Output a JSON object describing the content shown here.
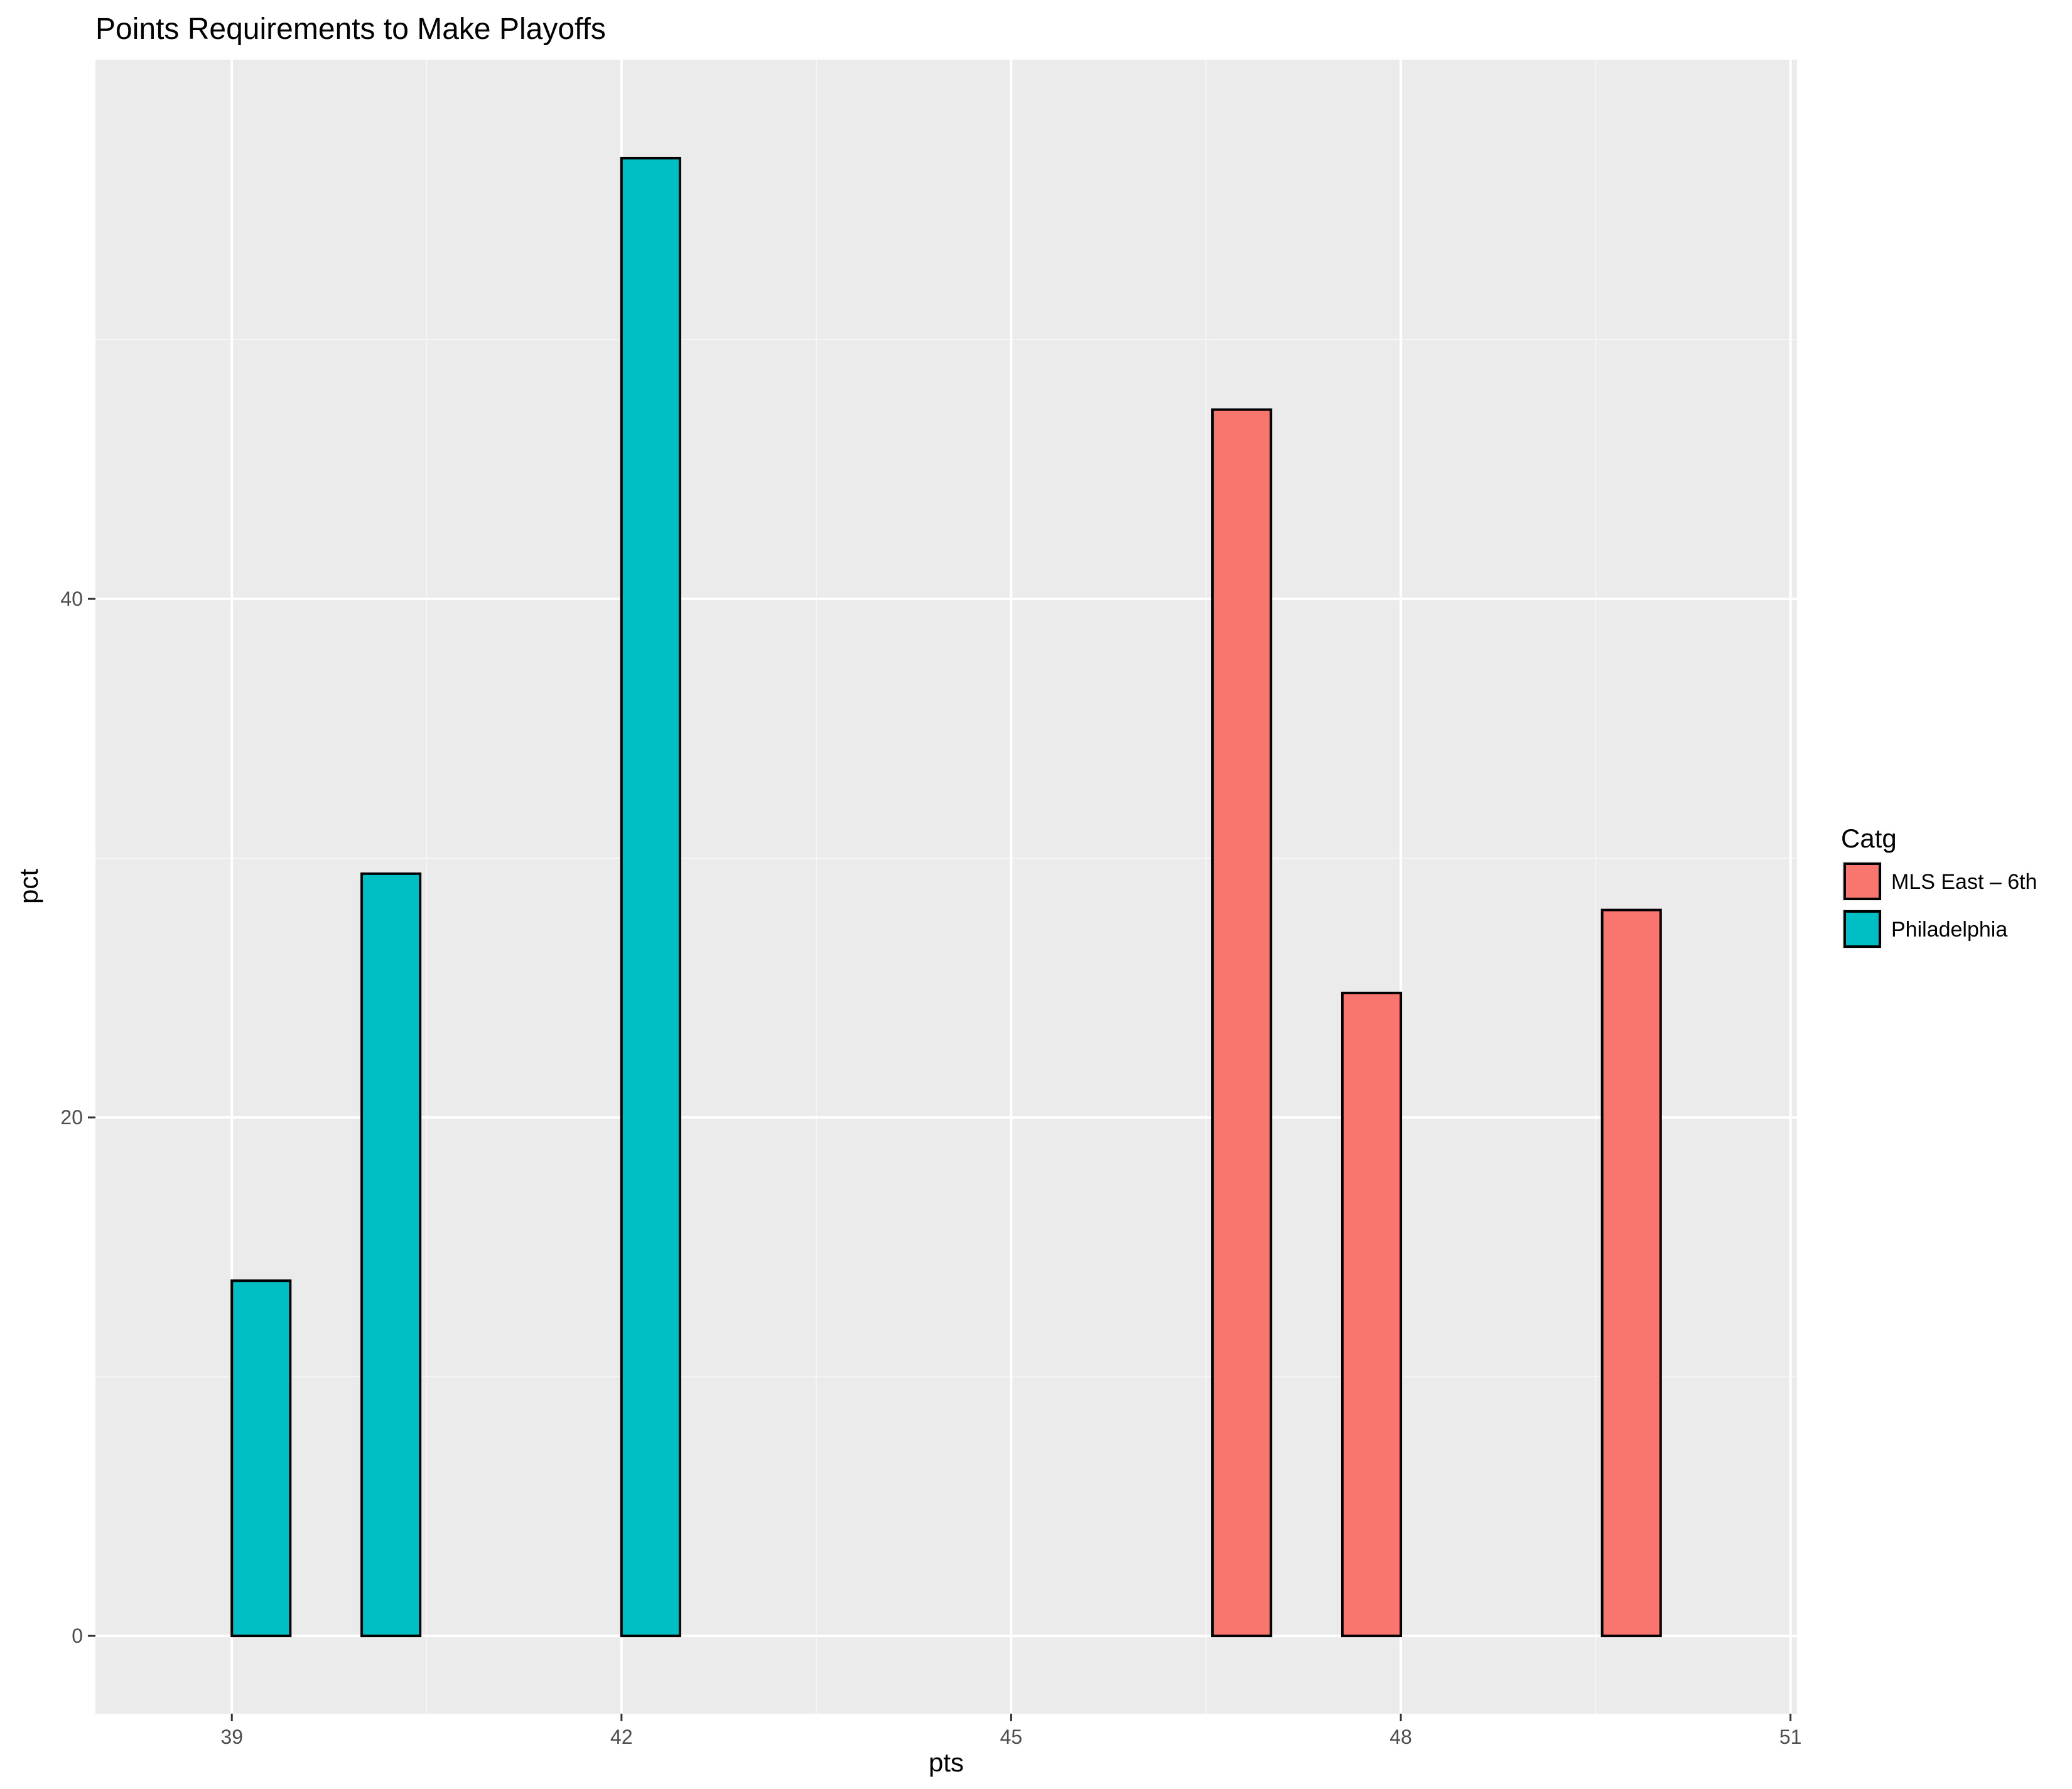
{
  "chart_data": {
    "type": "bar",
    "title": "Points Requirements to Make Playoffs",
    "xlabel": "pts",
    "ylabel": "pct",
    "xlim": [
      37.95,
      51.05
    ],
    "ylim": [
      -3.0,
      60.8
    ],
    "x_ticks": [
      39,
      42,
      45,
      48,
      51
    ],
    "y_ticks": [
      0,
      20,
      40
    ],
    "grid": true,
    "legend": {
      "title": "Catg",
      "position": "right"
    },
    "categories": [
      39,
      40,
      41,
      42,
      43,
      44,
      45,
      46,
      47,
      48,
      49,
      50
    ],
    "series": [
      {
        "name": "MLS East – 6th",
        "color": "#F8766D",
        "values": [
          0,
          0,
          0,
          0,
          0,
          0,
          0,
          0,
          47.3,
          24.8,
          0,
          28.0
        ]
      },
      {
        "name": "Philadelphia",
        "color": "#00BFC4",
        "values": [
          13.7,
          29.4,
          0,
          57.0,
          0,
          0,
          0,
          0,
          0,
          0,
          0,
          0
        ]
      }
    ]
  }
}
